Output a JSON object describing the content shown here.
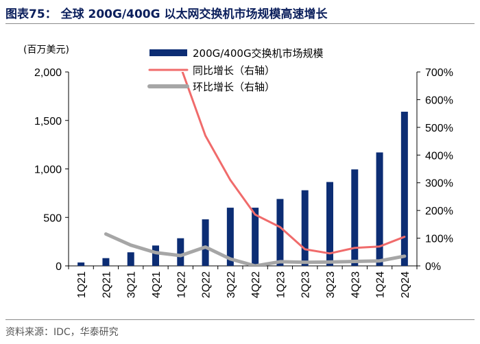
{
  "header": {
    "title": "图表75： 全球 200G/400G 以太网交换机市场规模高速增长"
  },
  "footer": {
    "source": "资料来源：IDC，华泰研究"
  },
  "chart_data": {
    "type": "bar",
    "title": "全球 200G/400G 以太网交换机市场规模高速增长",
    "ylabel": "(百万美元)",
    "ylim": [
      0,
      2000
    ],
    "y2lim": [
      0,
      700
    ],
    "yticks": [
      "0",
      "500",
      "1,000",
      "1,500",
      "2,000"
    ],
    "y2ticks": [
      "0%",
      "100%",
      "200%",
      "300%",
      "400%",
      "500%",
      "600%",
      "700%"
    ],
    "categories": [
      "1Q21",
      "2Q21",
      "3Q21",
      "4Q21",
      "1Q22",
      "2Q22",
      "3Q22",
      "4Q22",
      "1Q23",
      "2Q23",
      "3Q23",
      "4Q23",
      "1Q24",
      "2Q24"
    ],
    "series": [
      {
        "name": "200G/400G交换机市场规模",
        "type": "bar",
        "axis": "left",
        "color": "#0c2d74",
        "values": [
          35,
          80,
          140,
          210,
          285,
          480,
          600,
          600,
          690,
          780,
          865,
          995,
          1170,
          1590
        ]
      },
      {
        "name": "同比增长（右轴）",
        "type": "line",
        "axis": "right",
        "color": "#f06b6b",
        "values": [
          null,
          null,
          null,
          null,
          720,
          470,
          310,
          185,
          140,
          60,
          45,
          65,
          70,
          105
        ]
      },
      {
        "name": "环比增长（右轴）",
        "type": "line",
        "axis": "right",
        "color": "#a6a6a6",
        "values": [
          null,
          115,
          75,
          48,
          37,
          68,
          25,
          0,
          15,
          13,
          14,
          16,
          18,
          35
        ]
      }
    ]
  }
}
